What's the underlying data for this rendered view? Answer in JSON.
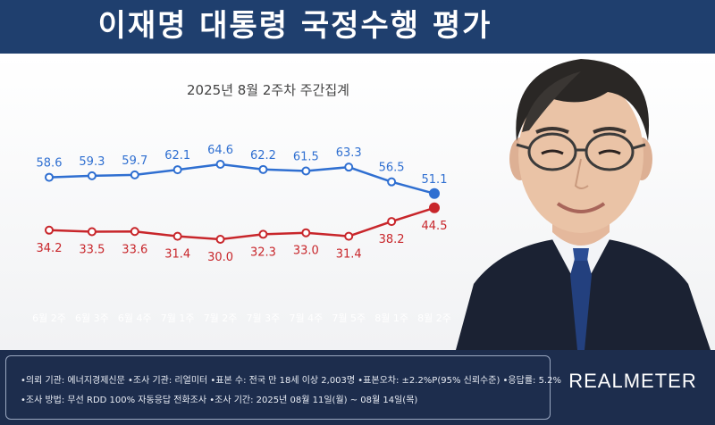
{
  "header": {
    "title": "이재명 대통령 국정수행 평가"
  },
  "chart_data": {
    "type": "line",
    "title": "2025년 8월 2주차 주간집계",
    "categories": [
      "6월 2주",
      "6월 3주",
      "6월 4주",
      "7월 1주",
      "7월 2주",
      "7월 3주",
      "7월 4주",
      "7월 5주",
      "8월 1주",
      "8월 2주"
    ],
    "series": [
      {
        "values": [
          58.6,
          59.3,
          59.7,
          62.1,
          64.6,
          62.2,
          61.5,
          63.3,
          56.5,
          51.1
        ],
        "color": "#2f6fd1"
      },
      {
        "values": [
          34.2,
          33.5,
          33.6,
          31.4,
          30.0,
          32.3,
          33.0,
          31.4,
          38.2,
          44.5
        ],
        "color": "#c8262b"
      }
    ],
    "grid": false,
    "legend": "none"
  },
  "footer": {
    "line1": "•의뢰 기관: 에너지경제신문 •조사 기관: 리얼미터 •표본 수: 전국 만 18세 이상 2,003명 •표본오차: ±2.2%P(95% 신뢰수준) •응답률: 5.2%",
    "line2": "•조사 방법: 무선 RDD 100% 자동응답 전화조사 •조사 기간: 2025년 08월 11일(월) ~ 08월 14일(목)",
    "brand": "REALMETER"
  }
}
